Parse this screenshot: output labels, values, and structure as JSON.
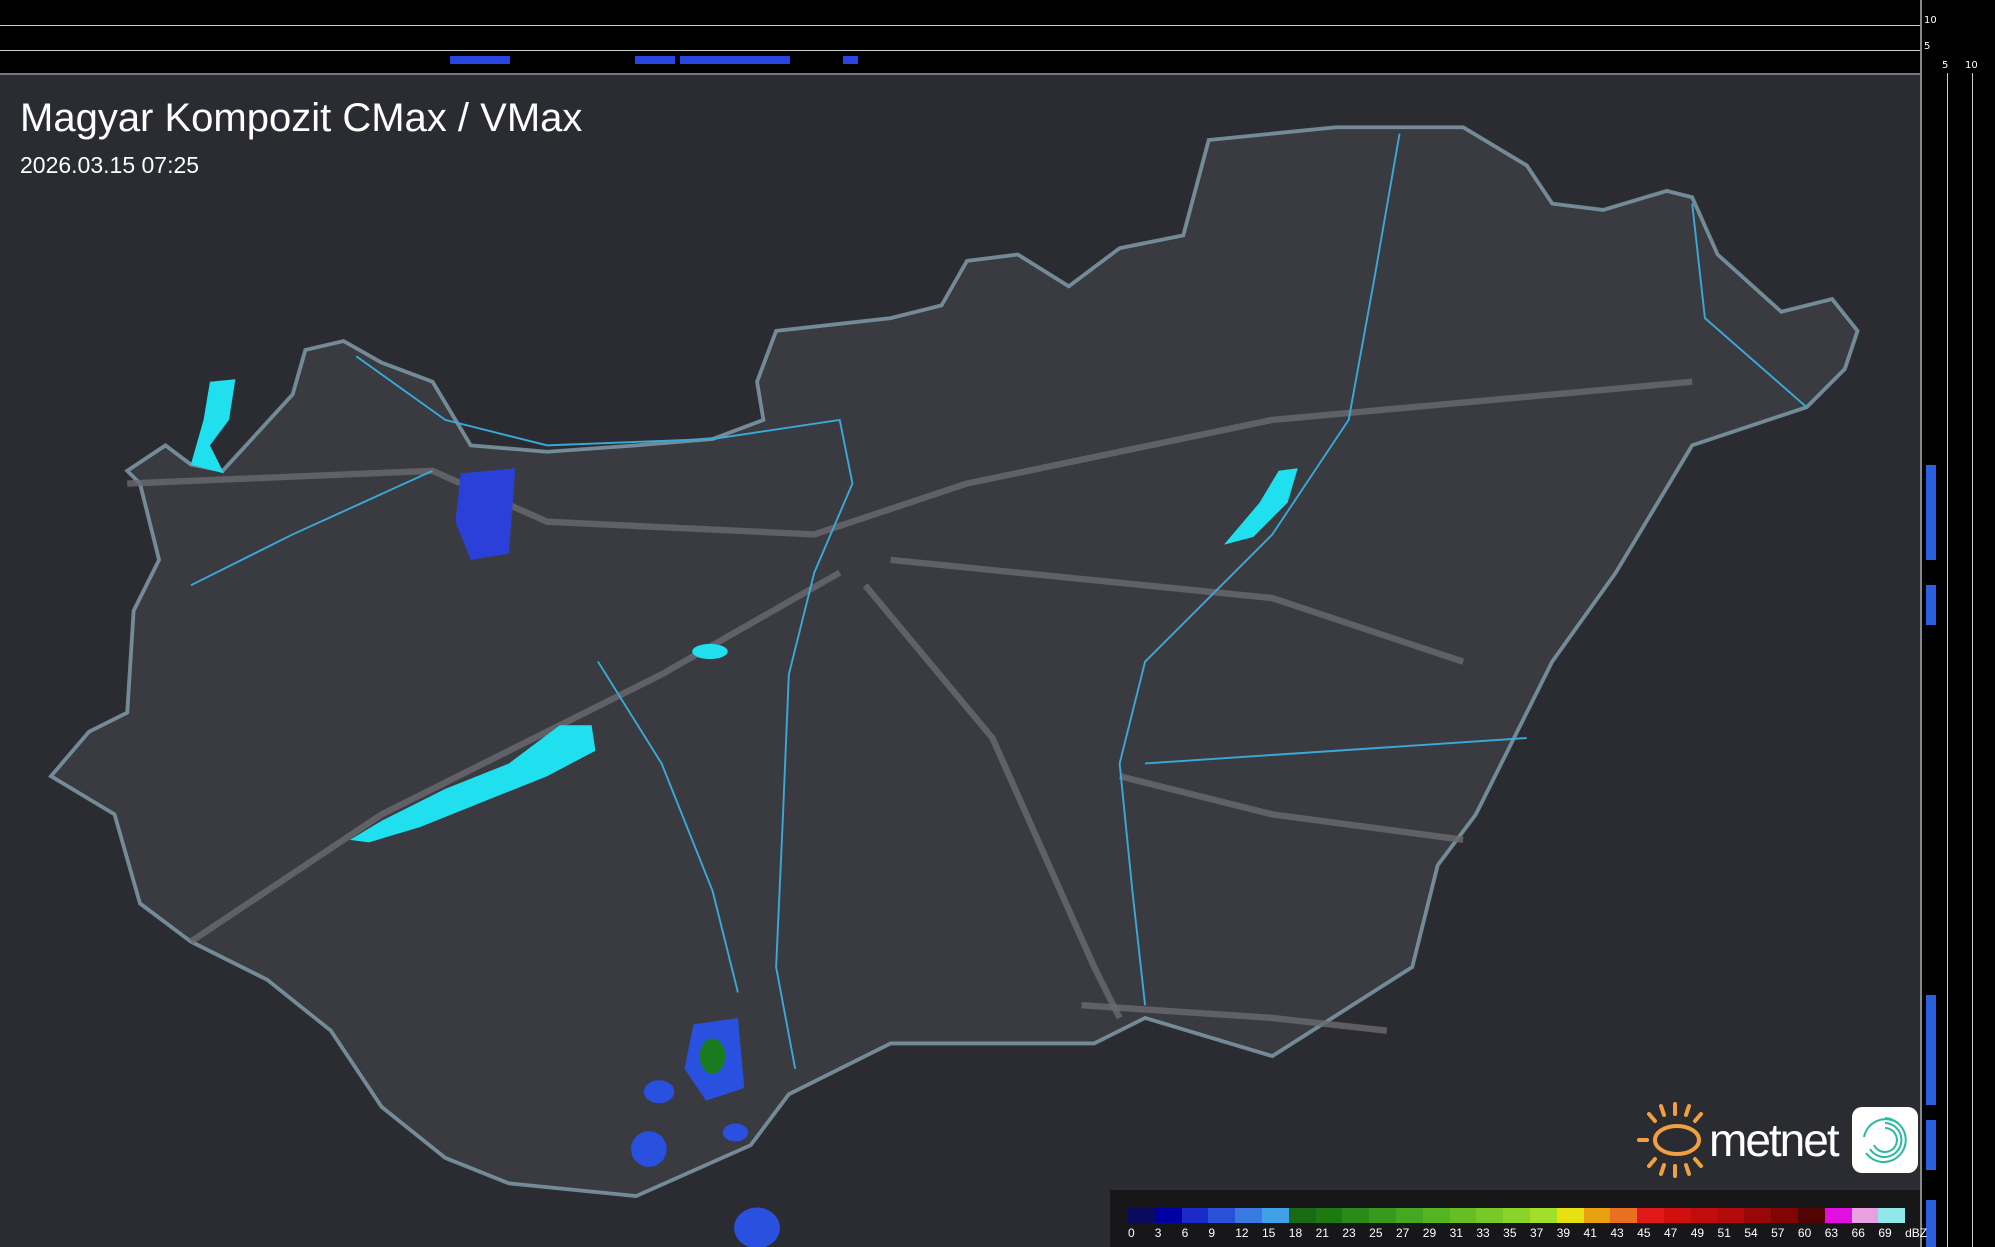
{
  "title": "Magyar Kompozit CMax / VMax",
  "timestamp": "2026.03.15 07:25",
  "side_profile_axis": {
    "top_ticks": [
      "10",
      "5"
    ],
    "right_ticks": [
      "5",
      "10"
    ]
  },
  "legend": {
    "unit": "dBZ",
    "labels": [
      "0",
      "3",
      "6",
      "9",
      "12",
      "15",
      "18",
      "21",
      "23",
      "25",
      "27",
      "29",
      "31",
      "33",
      "35",
      "37",
      "39",
      "41",
      "43",
      "45",
      "47",
      "49",
      "51",
      "54",
      "57",
      "60",
      "63",
      "66",
      "69"
    ],
    "colors": [
      "#0a0a5e",
      "#0000a0",
      "#1a2bc8",
      "#2a4fd8",
      "#3a7ae0",
      "#40a0e8",
      "#1a6a14",
      "#1e7a10",
      "#2a8a18",
      "#369a1e",
      "#44a820",
      "#55b422",
      "#66be24",
      "#78c828",
      "#8ad42a",
      "#a0e02c",
      "#e8e010",
      "#e8a010",
      "#e87020",
      "#e01818",
      "#d01010",
      "#c00c0c",
      "#b00a0a",
      "#980808",
      "#800606",
      "#500404",
      "#e010e0",
      "#e8a0e0",
      "#90e8e8"
    ]
  },
  "logo": {
    "brand": "metnet",
    "sun_color": "#f0a040",
    "icon_color": "#2ab8a0"
  },
  "colors": {
    "border": "#8fb0c0",
    "rivers": "#3aa8d8",
    "lakes": "#20e0f0",
    "roads": "#6a6a70",
    "background": "#2b2c31"
  }
}
